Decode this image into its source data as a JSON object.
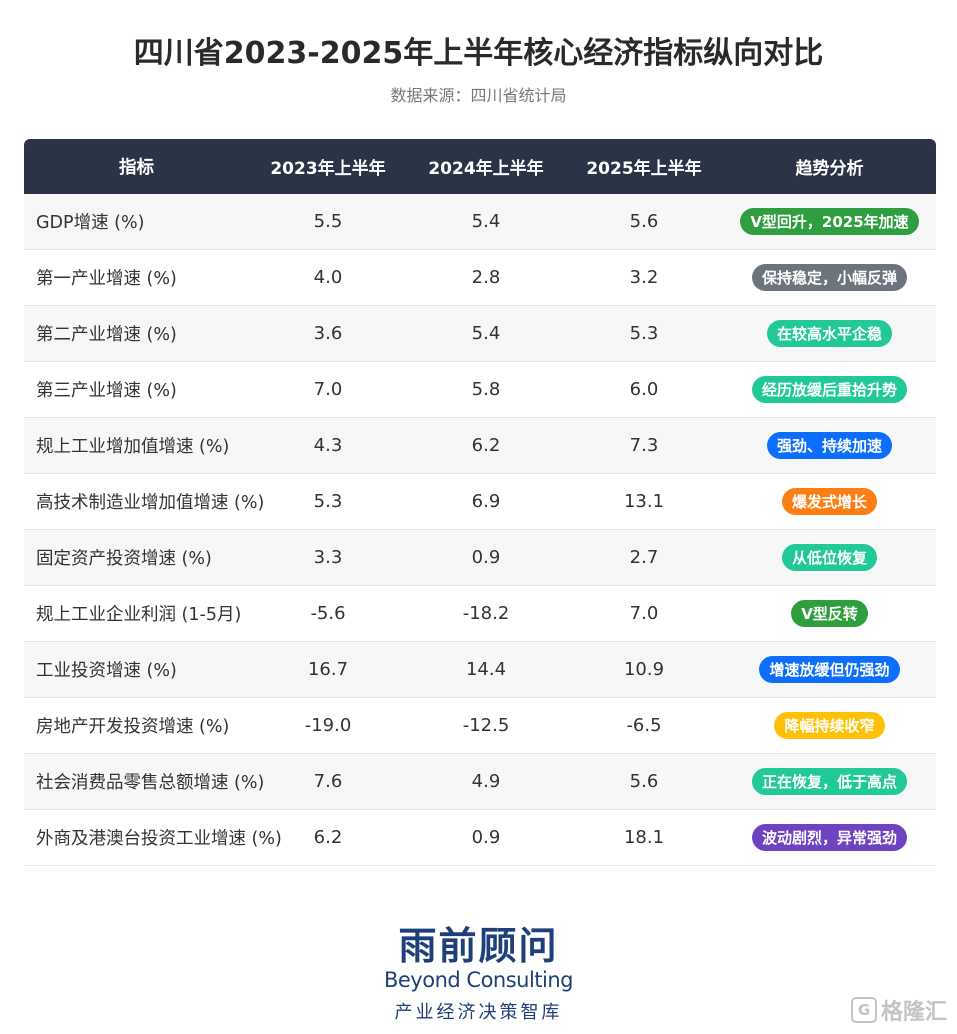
{
  "title": "四川省2023-2025年上半年核心经济指标纵向对比",
  "subtitle": "数据来源：四川省统计局",
  "chart_data": {
    "type": "table",
    "columns": [
      "指标",
      "2023年上半年",
      "2024年上半年",
      "2025年上半年",
      "趋势分析"
    ],
    "rows": [
      {
        "name": "GDP增速 (%)",
        "v2023": "5.5",
        "v2024": "5.4",
        "v2025": "5.6",
        "trend": "V型回升，2025年加速",
        "color": "#2e9e3e"
      },
      {
        "name": "第一产业增速 (%)",
        "v2023": "4.0",
        "v2024": "2.8",
        "v2025": "3.2",
        "trend": "保持稳定，小幅反弹",
        "color": "#6c757d"
      },
      {
        "name": "第二产业增速 (%)",
        "v2023": "3.6",
        "v2024": "5.4",
        "v2025": "5.3",
        "trend": "在较高水平企稳",
        "color": "#20c997"
      },
      {
        "name": "第三产业增速 (%)",
        "v2023": "7.0",
        "v2024": "5.8",
        "v2025": "6.0",
        "trend": "经历放缓后重拾升势",
        "color": "#20c997"
      },
      {
        "name": "规上工业增加值增速 (%)",
        "v2023": "4.3",
        "v2024": "6.2",
        "v2025": "7.3",
        "trend": "强劲、持续加速",
        "color": "#0d6efd"
      },
      {
        "name": "高技术制造业增加值增速 (%)",
        "v2023": "5.3",
        "v2024": "6.9",
        "v2025": "13.1",
        "trend": "爆发式增长",
        "color": "#fd7e14"
      },
      {
        "name": "固定资产投资增速 (%)",
        "v2023": "3.3",
        "v2024": "0.9",
        "v2025": "2.7",
        "trend": "从低位恢复",
        "color": "#20c997"
      },
      {
        "name": "规上工业企业利润 (1-5月)",
        "v2023": "-5.6",
        "v2024": "-18.2",
        "v2025": "7.0",
        "trend": "V型反转",
        "color": "#2e9e3e"
      },
      {
        "name": "工业投资增速 (%)",
        "v2023": "16.7",
        "v2024": "14.4",
        "v2025": "10.9",
        "trend": "增速放缓但仍强劲",
        "color": "#0d6efd"
      },
      {
        "name": "房地产开发投资增速 (%)",
        "v2023": "-19.0",
        "v2024": "-12.5",
        "v2025": "-6.5",
        "trend": "降幅持续收窄",
        "color": "#ffc107"
      },
      {
        "name": "社会消费品零售总额增速 (%)",
        "v2023": "7.6",
        "v2024": "4.9",
        "v2025": "5.6",
        "trend": "正在恢复，低于高点",
        "color": "#20c997"
      },
      {
        "name": "外商及港澳台投资工业增速 (%)",
        "v2023": "6.2",
        "v2024": "0.9",
        "v2025": "18.1",
        "trend": "波动剧烈，异常强劲",
        "color": "#6f42c1"
      }
    ]
  },
  "logo": {
    "cn": "雨前顾问",
    "en": "Beyond Consulting",
    "sub": "产业经济决策智库"
  },
  "watermark": {
    "icon": "G",
    "text": "格隆汇"
  }
}
